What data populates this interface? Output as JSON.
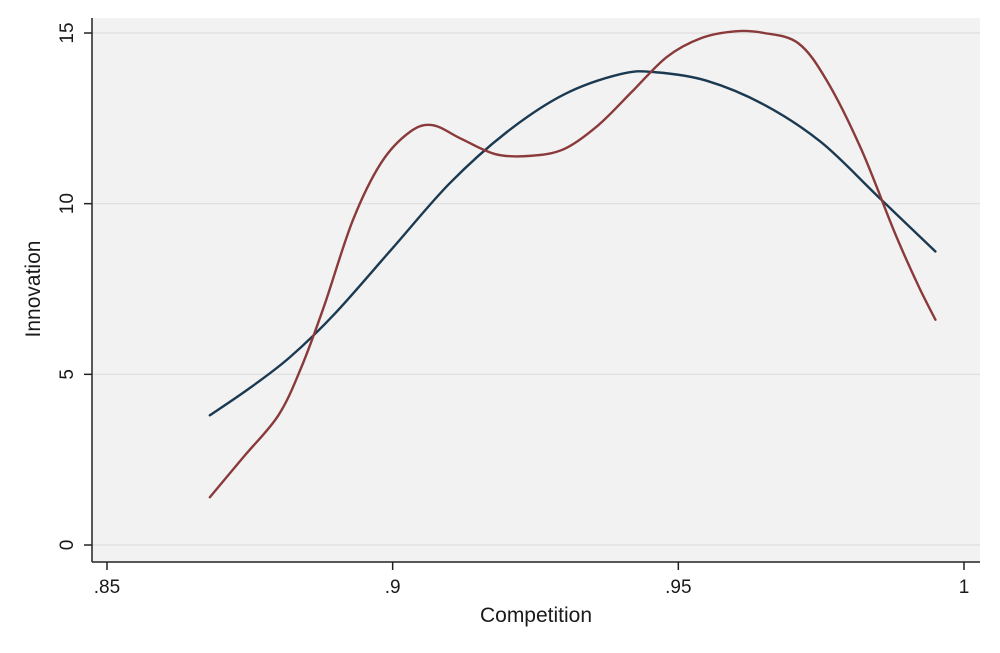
{
  "chart_data": {
    "type": "line",
    "title": "",
    "xlabel": "Competition",
    "ylabel": "Innovation",
    "xlim": [
      0.85,
      1.0
    ],
    "ylim": [
      0,
      15
    ],
    "x_ticks": [
      {
        "value": 0.85,
        "label": ".85"
      },
      {
        "value": 0.9,
        "label": ".9"
      },
      {
        "value": 0.95,
        "label": ".95"
      },
      {
        "value": 1.0,
        "label": "1"
      }
    ],
    "y_ticks": [
      {
        "value": 0,
        "label": "0"
      },
      {
        "value": 5,
        "label": "5"
      },
      {
        "value": 10,
        "label": "10"
      },
      {
        "value": 15,
        "label": "15"
      }
    ],
    "grid": "horizontal",
    "legend": "none",
    "colors": {
      "plot_background": "#f2f2f2",
      "grid": "#dedede",
      "axis": "#222222",
      "series_1": "#1b3a52",
      "series_2": "#8a3a3a"
    },
    "series": [
      {
        "color": "#1b3a52",
        "x": [
          0.868,
          0.875,
          0.882,
          0.89,
          0.9,
          0.91,
          0.92,
          0.93,
          0.94,
          0.946,
          0.955,
          0.965,
          0.975,
          0.985,
          0.995
        ],
        "y": [
          3.8,
          4.6,
          5.5,
          6.8,
          8.7,
          10.6,
          12.1,
          13.2,
          13.8,
          13.85,
          13.6,
          12.9,
          11.8,
          10.2,
          8.6
        ]
      },
      {
        "color": "#8a3a3a",
        "x": [
          0.868,
          0.874,
          0.88,
          0.884,
          0.888,
          0.893,
          0.898,
          0.903,
          0.907,
          0.912,
          0.918,
          0.924,
          0.93,
          0.936,
          0.942,
          0.948,
          0.954,
          0.96,
          0.965,
          0.971,
          0.976,
          0.982,
          0.988,
          0.992,
          0.995
        ],
        "y": [
          1.4,
          2.6,
          3.8,
          5.2,
          7.0,
          9.5,
          11.2,
          12.1,
          12.3,
          11.9,
          11.45,
          11.4,
          11.6,
          12.3,
          13.3,
          14.3,
          14.85,
          15.05,
          15.0,
          14.7,
          13.6,
          11.6,
          9.1,
          7.6,
          6.6
        ]
      }
    ]
  }
}
